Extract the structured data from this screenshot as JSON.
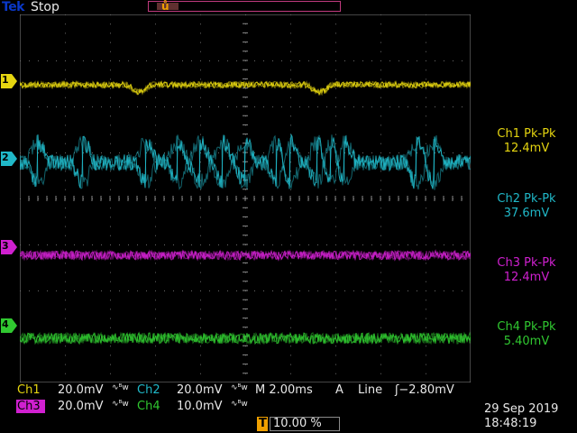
{
  "topbar": {
    "brand": "Tek",
    "status": "Stop"
  },
  "channels": [
    {
      "id": "ch1",
      "marker": "1",
      "color": "#e6d610",
      "meas_title": "Ch1 Pk-Pk",
      "meas_value": "12.4mV"
    },
    {
      "id": "ch2",
      "marker": "2",
      "color": "#20b8c8",
      "meas_title": "Ch2 Pk-Pk",
      "meas_value": "37.6mV"
    },
    {
      "id": "ch3",
      "marker": "3",
      "color": "#d020d0",
      "meas_title": "Ch3 Pk-Pk",
      "meas_value": "12.4mV"
    },
    {
      "id": "ch4",
      "marker": "4",
      "color": "#30c830",
      "meas_title": "Ch4 Pk-Pk",
      "meas_value": "5.40mV"
    }
  ],
  "bottom": {
    "ch1_label": "Ch1",
    "ch1_scale": "20.0mV",
    "ch2_label": "Ch2",
    "ch2_scale": "20.0mV",
    "ch3_label": "Ch3",
    "ch3_scale": "20.0mV",
    "ch4_label": "Ch4",
    "ch4_scale": "10.0mV",
    "coupling_symbol": "∿ᴮw",
    "timebase": "M 2.00ms",
    "trigger_source_label": "A",
    "trigger_source": "Line",
    "trigger_level": "ʃ−2.80mV",
    "trigger_position_icon": "T",
    "trigger_position": "10.00 %",
    "date": "29 Sep  2019",
    "time": "18:48:19"
  },
  "trigger_marker": "T"
}
